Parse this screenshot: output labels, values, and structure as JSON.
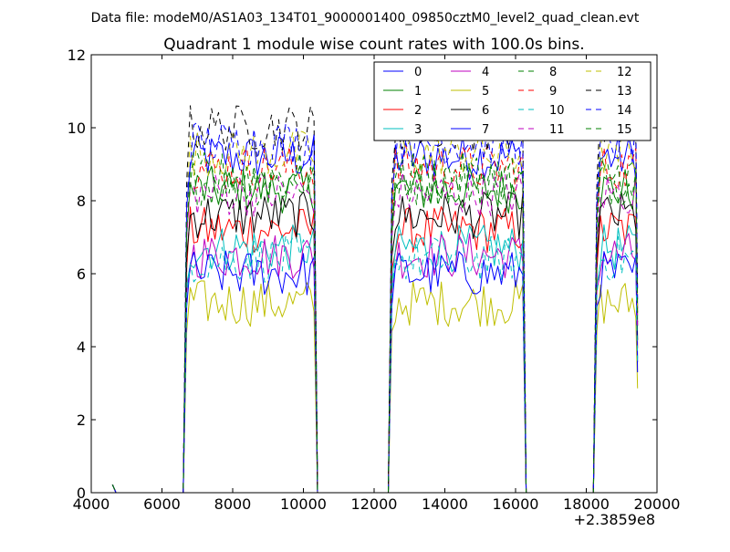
{
  "header": {
    "file_label": "Data file: modeM0/AS1A03_134T01_9000001400_09850cztM0_level2_quad_clean.evt"
  },
  "chart_data": {
    "type": "line",
    "title": "Quadrant 1 module wise count rates with 100.0s bins.",
    "xlabel": "",
    "ylabel": "",
    "x_offset_label": "+2.3859e8",
    "xlim": [
      4000,
      20000
    ],
    "ylim": [
      0,
      12
    ],
    "xticks": [
      4000,
      6000,
      8000,
      10000,
      12000,
      14000,
      16000,
      18000,
      20000
    ],
    "yticks": [
      0,
      2,
      4,
      6,
      8,
      10,
      12
    ],
    "xtick_labels": [
      "4000",
      "6000",
      "8000",
      "10000",
      "12000",
      "14000",
      "16000",
      "18000",
      "20000"
    ],
    "ytick_labels": [
      "0",
      "2",
      "4",
      "6",
      "8",
      "10",
      "12"
    ],
    "grid": false,
    "legend_placement": "top-right",
    "legend_columns": 4,
    "bin_size": 100,
    "segments": [
      {
        "start": 4600,
        "end": 4700,
        "startup": 0.22
      },
      {
        "start": 6600,
        "end": 10300
      },
      {
        "start": 12400,
        "end": 16200
      },
      {
        "start": 18200,
        "end": 19400
      }
    ],
    "series": [
      {
        "name": "0",
        "color": "#0000ff",
        "style": "solid",
        "level": 9.2
      },
      {
        "name": "1",
        "color": "#008000",
        "style": "solid",
        "level": 8.3
      },
      {
        "name": "2",
        "color": "#ff0000",
        "style": "solid",
        "level": 7.2
      },
      {
        "name": "3",
        "color": "#00bfbf",
        "style": "solid",
        "level": 6.7
      },
      {
        "name": "4",
        "color": "#bf00bf",
        "style": "solid",
        "level": 6.5
      },
      {
        "name": "5",
        "color": "#bfbf00",
        "style": "solid",
        "level": 5.2
      },
      {
        "name": "6",
        "color": "#000000",
        "style": "solid",
        "level": 7.6
      },
      {
        "name": "7",
        "color": "#0000ff",
        "style": "solid",
        "level": 6.0
      },
      {
        "name": "8",
        "color": "#008000",
        "style": "dashed",
        "level": 8.5
      },
      {
        "name": "9",
        "color": "#ff0000",
        "style": "dashed",
        "level": 8.9
      },
      {
        "name": "10",
        "color": "#00bfbf",
        "style": "dashed",
        "level": 6.4
      },
      {
        "name": "11",
        "color": "#bf00bf",
        "style": "dashed",
        "level": 8.2
      },
      {
        "name": "12",
        "color": "#bfbf00",
        "style": "dashed",
        "level": 9.3
      },
      {
        "name": "13",
        "color": "#000000",
        "style": "dashed",
        "level": 10.0
      },
      {
        "name": "14",
        "color": "#0000ff",
        "style": "dashed",
        "level": 9.6
      },
      {
        "name": "15",
        "color": "#008000",
        "style": "dashed",
        "level": 8.7
      }
    ]
  }
}
